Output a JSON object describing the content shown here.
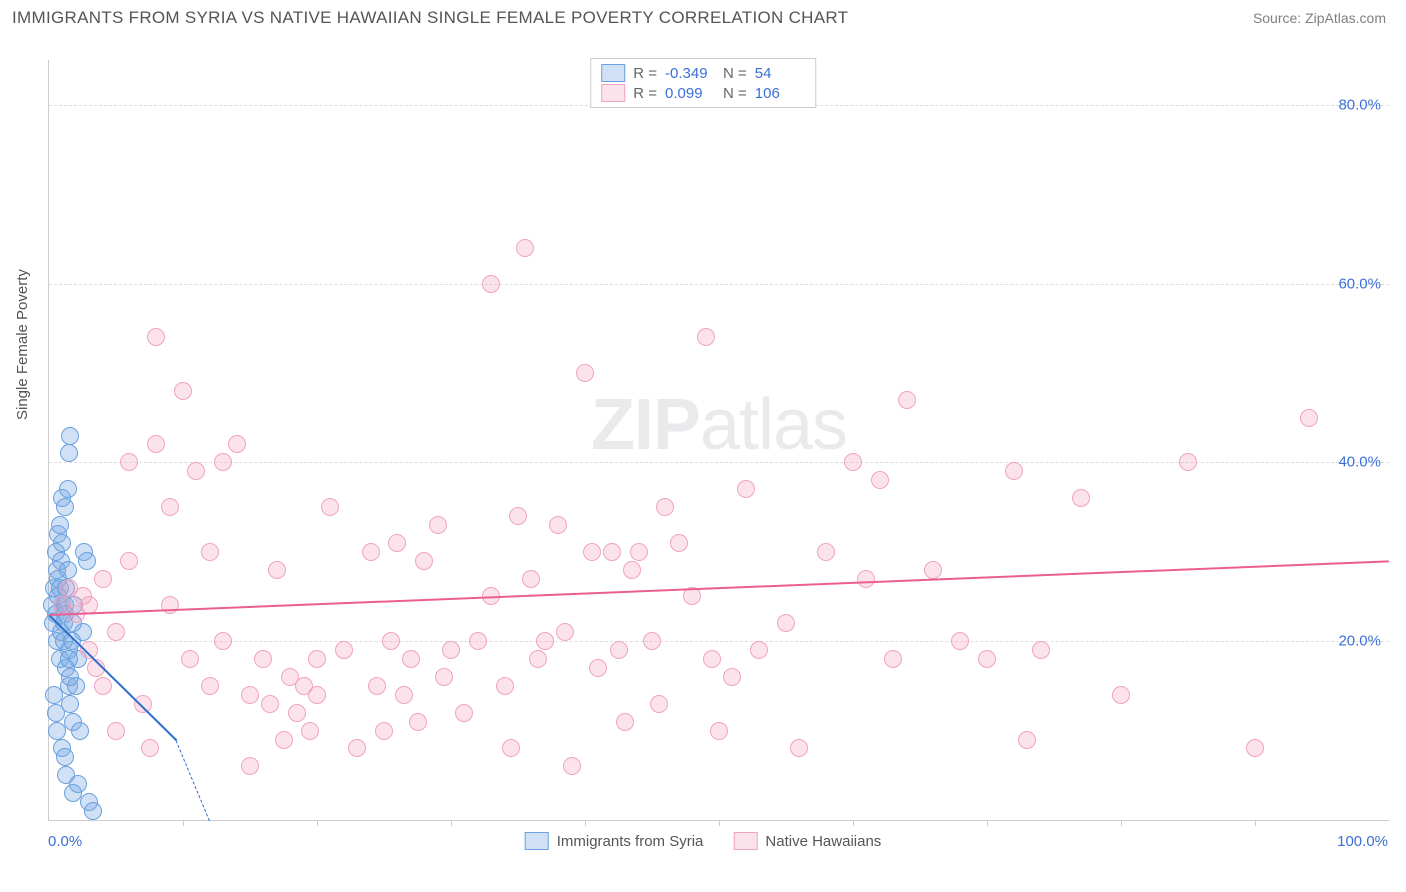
{
  "title": "IMMIGRANTS FROM SYRIA VS NATIVE HAWAIIAN SINGLE FEMALE POVERTY CORRELATION CHART",
  "source": "Source: ZipAtlas.com",
  "watermark": {
    "bold": "ZIP",
    "rest": "atlas"
  },
  "y_axis_label": "Single Female Poverty",
  "chart": {
    "type": "scatter",
    "xlim": [
      0,
      100
    ],
    "ylim": [
      0,
      85
    ],
    "x_ticks": [
      0,
      100
    ],
    "x_tick_labels": [
      "0.0%",
      "100.0%"
    ],
    "x_minor_ticks": [
      10,
      20,
      30,
      40,
      50,
      60,
      70,
      80,
      90
    ],
    "y_ticks": [
      20,
      40,
      60,
      80
    ],
    "y_tick_labels": [
      "20.0%",
      "40.0%",
      "60.0%",
      "80.0%"
    ],
    "background_color": "#ffffff",
    "grid_color": "#dddddd",
    "point_radius": 9,
    "series": [
      {
        "name": "Immigrants from Syria",
        "color_fill": "rgba(120,170,230,0.35)",
        "color_stroke": "#6aa0dd",
        "R": "-0.349",
        "N": "54",
        "trend": {
          "x1": 0,
          "y1": 23,
          "x2": 9.5,
          "y2": 9,
          "color": "#2e6fd0",
          "dash_extend": {
            "x2": 12,
            "y2": 0
          }
        },
        "points": [
          [
            0.3,
            22
          ],
          [
            0.2,
            24
          ],
          [
            0.4,
            26
          ],
          [
            0.6,
            20
          ],
          [
            0.8,
            18
          ],
          [
            0.5,
            23
          ],
          [
            0.7,
            25
          ],
          [
            0.9,
            21
          ],
          [
            0.4,
            14
          ],
          [
            0.5,
            12
          ],
          [
            0.6,
            10
          ],
          [
            1.0,
            8
          ],
          [
            1.2,
            7
          ],
          [
            1.3,
            5
          ],
          [
            1.8,
            3
          ],
          [
            2.2,
            4
          ],
          [
            3.0,
            2
          ],
          [
            3.3,
            1
          ],
          [
            1.0,
            24
          ],
          [
            1.2,
            23
          ],
          [
            1.1,
            20
          ],
          [
            1.5,
            19
          ],
          [
            1.3,
            17
          ],
          [
            1.5,
            15
          ],
          [
            1.6,
            13
          ],
          [
            1.8,
            11
          ],
          [
            2.0,
            15
          ],
          [
            2.2,
            18
          ],
          [
            2.3,
            10
          ],
          [
            2.5,
            21
          ],
          [
            2.6,
            30
          ],
          [
            2.8,
            29
          ],
          [
            0.5,
            30
          ],
          [
            0.7,
            32
          ],
          [
            0.8,
            33
          ],
          [
            1.0,
            36
          ],
          [
            1.2,
            35
          ],
          [
            1.4,
            37
          ],
          [
            1.5,
            41
          ],
          [
            1.6,
            43
          ],
          [
            0.6,
            28
          ],
          [
            0.7,
            27
          ],
          [
            0.8,
            26
          ],
          [
            0.9,
            29
          ],
          [
            1.0,
            31
          ],
          [
            1.1,
            22
          ],
          [
            1.2,
            24
          ],
          [
            1.3,
            26
          ],
          [
            1.4,
            28
          ],
          [
            1.5,
            18
          ],
          [
            1.6,
            16
          ],
          [
            1.7,
            20
          ],
          [
            1.8,
            22
          ],
          [
            1.9,
            24
          ]
        ]
      },
      {
        "name": "Native Hawaiians",
        "color_fill": "rgba(244,160,190,0.30)",
        "color_stroke": "#f0a4c0",
        "R": "0.099",
        "N": "106",
        "trend": {
          "x1": 0,
          "y1": 23,
          "x2": 100,
          "y2": 29,
          "color": "#ea5f8f"
        },
        "points": [
          [
            1,
            24
          ],
          [
            1.5,
            26
          ],
          [
            2,
            23
          ],
          [
            2.5,
            25
          ],
          [
            3,
            24
          ],
          [
            3,
            19
          ],
          [
            3.5,
            17
          ],
          [
            4,
            15
          ],
          [
            4,
            27
          ],
          [
            5,
            21
          ],
          [
            5,
            10
          ],
          [
            6,
            40
          ],
          [
            6,
            29
          ],
          [
            7,
            13
          ],
          [
            7.5,
            8
          ],
          [
            8,
            42
          ],
          [
            8,
            54
          ],
          [
            9,
            24
          ],
          [
            9,
            35
          ],
          [
            10,
            48
          ],
          [
            10.5,
            18
          ],
          [
            11,
            39
          ],
          [
            12,
            15
          ],
          [
            12,
            30
          ],
          [
            13,
            20
          ],
          [
            13,
            40
          ],
          [
            14,
            42
          ],
          [
            15,
            6
          ],
          [
            15,
            14
          ],
          [
            16,
            18
          ],
          [
            16.5,
            13
          ],
          [
            17,
            28
          ],
          [
            17.5,
            9
          ],
          [
            18,
            16
          ],
          [
            18.5,
            12
          ],
          [
            19,
            15
          ],
          [
            19.5,
            10
          ],
          [
            20,
            18
          ],
          [
            20,
            14
          ],
          [
            21,
            35
          ],
          [
            22,
            19
          ],
          [
            23,
            8
          ],
          [
            24,
            30
          ],
          [
            24.5,
            15
          ],
          [
            25,
            10
          ],
          [
            25.5,
            20
          ],
          [
            26,
            31
          ],
          [
            26.5,
            14
          ],
          [
            27,
            18
          ],
          [
            27.5,
            11
          ],
          [
            28,
            29
          ],
          [
            29,
            33
          ],
          [
            29.5,
            16
          ],
          [
            30,
            19
          ],
          [
            31,
            12
          ],
          [
            32,
            20
          ],
          [
            33,
            25
          ],
          [
            33,
            60
          ],
          [
            34,
            15
          ],
          [
            34.5,
            8
          ],
          [
            35,
            34
          ],
          [
            35.5,
            64
          ],
          [
            36,
            27
          ],
          [
            36.5,
            18
          ],
          [
            37,
            20
          ],
          [
            38,
            33
          ],
          [
            38.5,
            21
          ],
          [
            39,
            6
          ],
          [
            40,
            50
          ],
          [
            40.5,
            30
          ],
          [
            41,
            17
          ],
          [
            42,
            30
          ],
          [
            42.5,
            19
          ],
          [
            43,
            11
          ],
          [
            43.5,
            28
          ],
          [
            44,
            30
          ],
          [
            45,
            20
          ],
          [
            46,
            35
          ],
          [
            47,
            31
          ],
          [
            48,
            25
          ],
          [
            49,
            54
          ],
          [
            49.5,
            18
          ],
          [
            50,
            10
          ],
          [
            51,
            16
          ],
          [
            52,
            37
          ],
          [
            53,
            19
          ],
          [
            55,
            22
          ],
          [
            56,
            8
          ],
          [
            60,
            40
          ],
          [
            61,
            27
          ],
          [
            62,
            38
          ],
          [
            63,
            18
          ],
          [
            64,
            47
          ],
          [
            66,
            28
          ],
          [
            68,
            20
          ],
          [
            70,
            18
          ],
          [
            72,
            39
          ],
          [
            73,
            9
          ],
          [
            74,
            19
          ],
          [
            77,
            36
          ],
          [
            80,
            14
          ],
          [
            85,
            40
          ],
          [
            90,
            8
          ],
          [
            94,
            45
          ],
          [
            58,
            30
          ],
          [
            45.5,
            13
          ]
        ]
      }
    ]
  },
  "legend_top": [
    {
      "swatch_fill": "rgba(120,170,230,0.35)",
      "swatch_stroke": "#6aa0dd",
      "r_label": "R =",
      "r_val": "-0.349",
      "n_label": "N =",
      "n_val": "54"
    },
    {
      "swatch_fill": "rgba(244,160,190,0.30)",
      "swatch_stroke": "#f0a4c0",
      "r_label": "R =",
      "r_val": "0.099",
      "n_label": "N =",
      "n_val": "106"
    }
  ],
  "legend_bottom": [
    {
      "swatch_fill": "rgba(120,170,230,0.35)",
      "swatch_stroke": "#6aa0dd",
      "label": "Immigrants from Syria"
    },
    {
      "swatch_fill": "rgba(244,160,190,0.30)",
      "swatch_stroke": "#f0a4c0",
      "label": "Native Hawaiians"
    }
  ]
}
